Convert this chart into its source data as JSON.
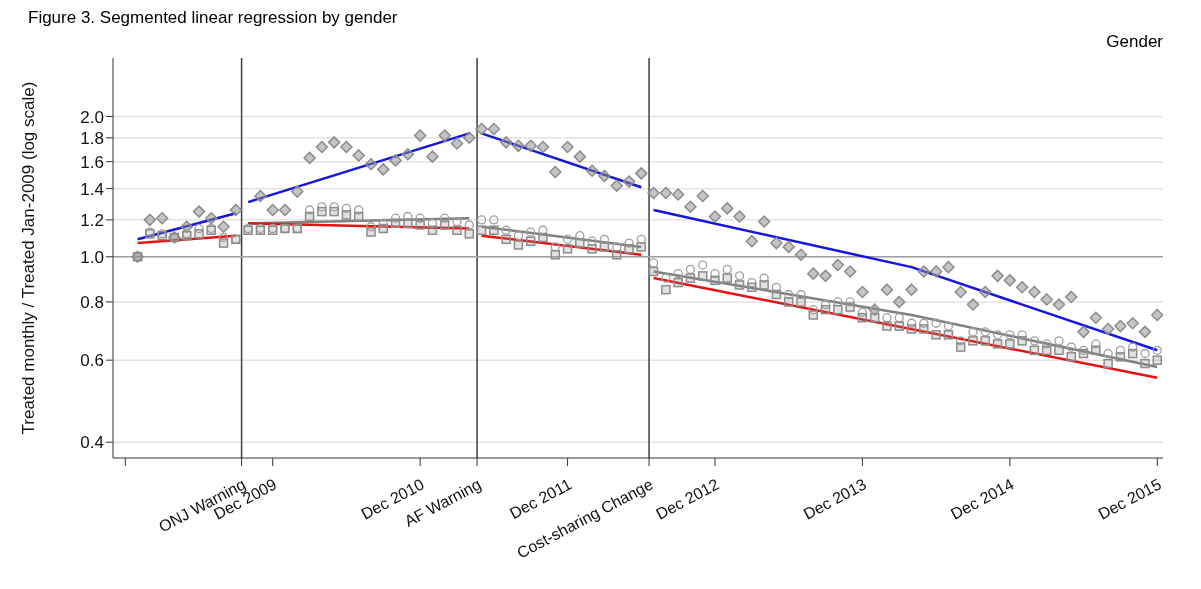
{
  "chart_data": {
    "type": "scatter",
    "title": "Figure 3. Segmented linear regression by gender",
    "ylabel": "Treated monthly / Treated Jan-2009 (log scale)",
    "legend_title": "Gender",
    "log": "y",
    "grid": "y",
    "x": [
      "2009-01",
      "2009-02",
      "2009-03",
      "2009-04",
      "2009-05",
      "2009-06",
      "2009-07",
      "2009-08",
      "2009-09",
      "2009-10",
      "2009-11",
      "2009-12",
      "2010-01",
      "2010-02",
      "2010-03",
      "2010-04",
      "2010-05",
      "2010-06",
      "2010-07",
      "2010-08",
      "2010-09",
      "2010-10",
      "2010-11",
      "2010-12",
      "2011-01",
      "2011-02",
      "2011-03",
      "2011-04",
      "2011-05",
      "2011-06",
      "2011-07",
      "2011-08",
      "2011-09",
      "2011-10",
      "2011-11",
      "2011-12",
      "2012-01",
      "2012-02",
      "2012-03",
      "2012-04",
      "2012-05",
      "2012-06",
      "2012-07",
      "2012-08",
      "2012-09",
      "2012-10",
      "2012-11",
      "2012-12",
      "2013-01",
      "2013-02",
      "2013-03",
      "2013-04",
      "2013-05",
      "2013-06",
      "2013-07",
      "2013-08",
      "2013-09",
      "2013-10",
      "2013-11",
      "2013-12",
      "2014-01",
      "2014-02",
      "2014-03",
      "2014-04",
      "2014-05",
      "2014-06",
      "2014-07",
      "2014-08",
      "2014-09",
      "2014-10",
      "2014-11",
      "2014-12",
      "2015-01",
      "2015-02",
      "2015-03",
      "2015-04",
      "2015-05",
      "2015-06",
      "2015-07",
      "2015-08",
      "2015-09",
      "2015-10",
      "2015-11",
      "2015-12"
    ],
    "xlim": [
      "2008-11",
      "2015-12-15"
    ],
    "xticks": [
      {
        "value": "2008-12",
        "label": null
      },
      {
        "value": "2009-12",
        "label": "Dec 2009"
      },
      {
        "value": "2010-12",
        "label": "Dec 2010"
      },
      {
        "value": "2011-12",
        "label": "Dec 2011"
      },
      {
        "value": "2012-12",
        "label": "Dec 2012"
      },
      {
        "value": "2013-12",
        "label": "Dec 2013"
      },
      {
        "value": "2014-12",
        "label": "Dec 2014"
      },
      {
        "value": "2015-12",
        "label": "Dec 2015"
      }
    ],
    "ylim": [
      0.37,
      2.67
    ],
    "yticks": [
      0.4,
      0.6,
      0.8,
      {
        "value": 1,
        "label": "1.0"
      },
      1.2,
      1.4,
      1.6,
      1.8,
      {
        "value": 2,
        "label": "2.0"
      }
    ],
    "ref_lines": [
      {
        "axis": "x",
        "value": "2009-09-15",
        "label": "ONJ Warning",
        "color": "#404040"
      },
      {
        "axis": "x",
        "value": "2011-04-20",
        "label": "AF Warning",
        "color": "#404040"
      },
      {
        "axis": "x",
        "value": "2012-06-20",
        "label": "Cost-sharing Change",
        "color": "#404040"
      },
      {
        "axis": "y",
        "value": 1,
        "color": "#a0a0a0"
      }
    ],
    "series": [
      {
        "marker": "diamond",
        "color": "#8c8c8c",
        "values": [
          1.0,
          1.2,
          1.21,
          1.1,
          1.16,
          1.25,
          1.21,
          1.16,
          1.26,
          null,
          1.35,
          1.26,
          1.26,
          1.38,
          1.63,
          1.72,
          1.76,
          1.72,
          1.65,
          1.58,
          1.54,
          1.61,
          1.66,
          1.82,
          1.64,
          1.82,
          1.75,
          1.8,
          1.88,
          1.88,
          1.76,
          1.73,
          1.73,
          1.72,
          1.52,
          1.72,
          1.64,
          1.53,
          1.49,
          1.42,
          1.45,
          1.51,
          1.37,
          1.37,
          1.36,
          1.28,
          1.35,
          1.22,
          1.27,
          1.22,
          1.08,
          1.19,
          1.07,
          1.05,
          1.01,
          0.92,
          0.91,
          0.96,
          0.93,
          0.84,
          0.77,
          0.85,
          0.8,
          0.85,
          0.93,
          0.93,
          0.95,
          0.84,
          0.79,
          0.84,
          0.91,
          0.89,
          0.86,
          0.84,
          0.81,
          0.79,
          0.82,
          0.69,
          0.74,
          0.7,
          0.71,
          0.72,
          0.69,
          0.75
        ]
      },
      {
        "marker": "circle",
        "color": "#a0a0a0",
        "values": [
          1.0,
          1.13,
          1.12,
          1.1,
          1.12,
          1.15,
          1.15,
          1.1,
          1.09,
          1.15,
          1.15,
          1.15,
          1.15,
          1.15,
          1.26,
          1.28,
          1.28,
          1.27,
          1.26,
          1.16,
          1.18,
          1.21,
          1.22,
          1.21,
          1.18,
          1.21,
          1.19,
          1.17,
          1.2,
          1.2,
          1.14,
          1.11,
          1.13,
          1.14,
          1.05,
          1.09,
          1.11,
          1.08,
          1.09,
          1.05,
          1.07,
          1.09,
          0.97,
          0.9,
          0.92,
          0.94,
          0.96,
          0.92,
          0.94,
          0.91,
          0.88,
          0.9,
          0.86,
          0.83,
          0.83,
          0.77,
          0.79,
          0.8,
          0.8,
          0.76,
          0.77,
          0.74,
          0.74,
          0.72,
          0.72,
          0.72,
          0.71,
          0.66,
          0.69,
          0.69,
          0.68,
          0.68,
          0.68,
          0.66,
          0.65,
          0.66,
          0.64,
          0.63,
          0.65,
          0.62,
          0.63,
          0.64,
          0.62,
          0.63
        ]
      },
      {
        "marker": "square",
        "color": "#8c8c8c",
        "values": [
          1.0,
          1.12,
          1.11,
          1.1,
          1.11,
          1.12,
          1.14,
          1.07,
          1.09,
          1.14,
          1.14,
          1.14,
          1.15,
          1.15,
          1.22,
          1.25,
          1.25,
          1.23,
          1.22,
          1.13,
          1.15,
          1.18,
          1.18,
          1.17,
          1.14,
          1.17,
          1.14,
          1.12,
          1.14,
          1.14,
          1.09,
          1.06,
          1.08,
          1.1,
          1.01,
          1.04,
          1.07,
          1.04,
          1.05,
          1.01,
          1.04,
          1.05,
          0.93,
          0.85,
          0.88,
          0.9,
          0.91,
          0.89,
          0.9,
          0.87,
          0.86,
          0.87,
          0.83,
          0.8,
          0.8,
          0.75,
          0.77,
          0.77,
          0.78,
          0.74,
          0.74,
          0.71,
          0.71,
          0.7,
          0.7,
          0.68,
          0.68,
          0.64,
          0.66,
          0.66,
          0.65,
          0.65,
          0.66,
          0.63,
          0.63,
          0.63,
          0.61,
          0.62,
          0.63,
          0.59,
          0.61,
          0.62,
          0.59,
          0.6
        ]
      },
      {
        "type": "line",
        "color": "#1515e0",
        "x": [
          "2009-01",
          "2009-09",
          "2009-09-20",
          "2009-10",
          "2011-04",
          "2011-04-20",
          "2011-05",
          "2012-06",
          "2012-06-20",
          "2012-07",
          "2014-04",
          "2015-12"
        ],
        "values": [
          1.09,
          1.24,
          null,
          1.31,
          1.84,
          null,
          1.84,
          1.41,
          null,
          1.26,
          0.95,
          0.63
        ]
      },
      {
        "type": "line",
        "color": "#808080",
        "x": [
          "2009-10",
          "2011-04",
          "2011-04-20",
          "2011-05",
          "2012-06",
          "2012-06-20",
          "2012-07",
          "2014-04",
          "2015-12"
        ],
        "values": [
          1.18,
          1.21,
          null,
          1.16,
          1.05,
          null,
          0.93,
          0.75,
          0.58
        ]
      },
      {
        "type": "line",
        "color": "#e81010",
        "x": [
          "2009-01",
          "2009-09",
          "2009-09-20",
          "2009-10",
          "2011-04",
          "2011-04-20",
          "2011-05",
          "2012-06",
          "2012-06-20",
          "2012-07",
          "2015-12"
        ],
        "values": [
          1.07,
          1.11,
          null,
          1.18,
          1.15,
          null,
          1.11,
          1.01,
          null,
          0.9,
          0.55
        ]
      }
    ]
  }
}
